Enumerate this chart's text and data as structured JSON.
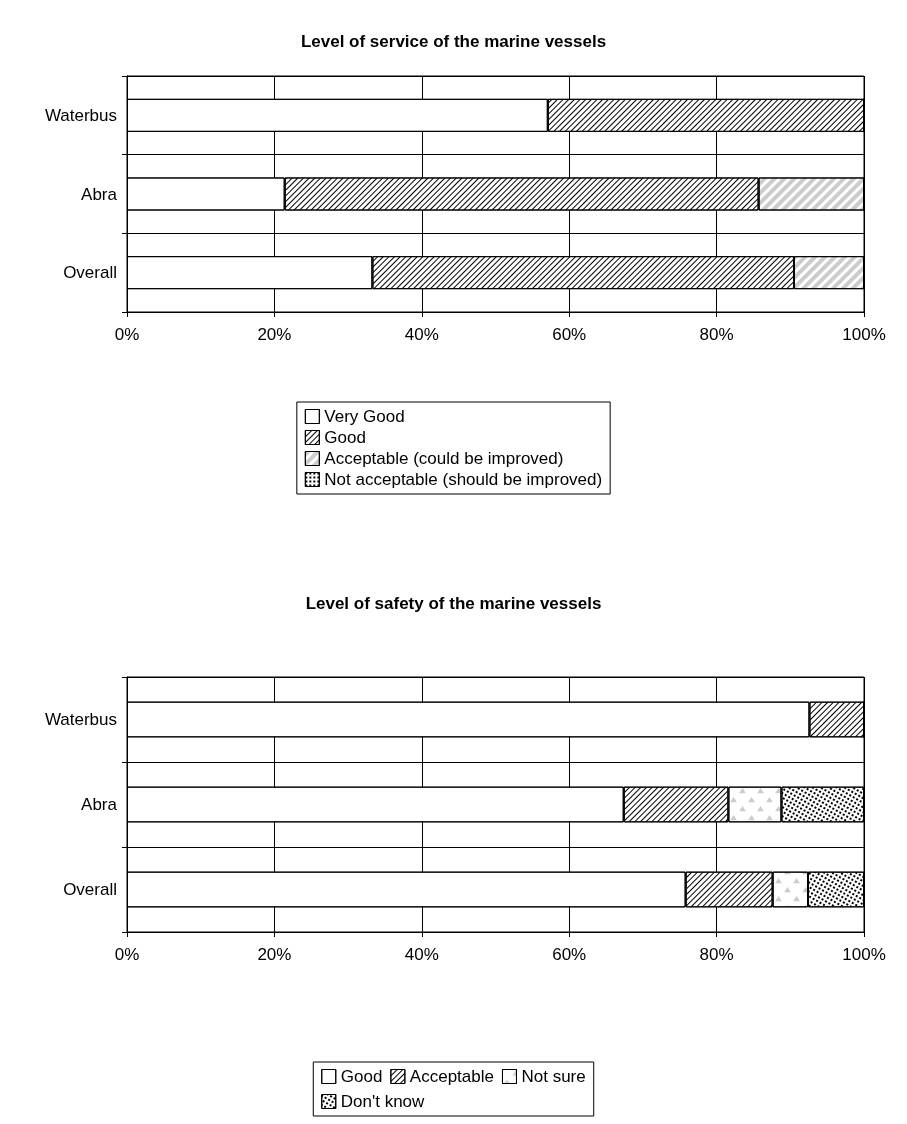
{
  "chart_data": [
    {
      "type": "bar",
      "title": "Level of service of the marine vessels",
      "orientation": "horizontal",
      "stacked": true,
      "grid": true,
      "legend": "bottom",
      "categories": [
        "Waterbus",
        "Abra",
        "Overall"
      ],
      "xlim": [
        0,
        100
      ],
      "xticks": [
        {
          "value": 0,
          "label": "0%"
        },
        {
          "value": 20,
          "label": "20%"
        },
        {
          "value": 40,
          "label": "40%"
        },
        {
          "value": 60,
          "label": "60%"
        },
        {
          "value": 80,
          "label": "80%"
        },
        {
          "value": 100,
          "label": "100%"
        }
      ],
      "series": [
        {
          "name": "Very Good",
          "color": "#ffffff",
          "values": [
            57.1,
            21.4,
            33.3
          ]
        },
        {
          "name": "Good",
          "color": "#ffffff",
          "values": [
            42.9,
            64.3,
            57.2
          ]
        },
        {
          "name": "Acceptable (could be improved)",
          "color": "#ffffff",
          "values": [
            0,
            14.3,
            9.5
          ]
        },
        {
          "name": "Not acceptable (should be improved)",
          "color": "#ffffff",
          "values": [
            0,
            0,
            0
          ]
        }
      ]
    },
    {
      "type": "bar",
      "title": "Level of safety of the marine vessels",
      "orientation": "horizontal",
      "stacked": true,
      "grid": true,
      "legend": "bottom",
      "categories": [
        "Waterbus",
        "Abra",
        "Overall"
      ],
      "xlim": [
        0,
        100
      ],
      "xticks": [
        {
          "value": 0,
          "label": "0%"
        },
        {
          "value": 20,
          "label": "20%"
        },
        {
          "value": 40,
          "label": "40%"
        },
        {
          "value": 60,
          "label": "60%"
        },
        {
          "value": 80,
          "label": "80%"
        },
        {
          "value": 100,
          "label": "100%"
        }
      ],
      "series": [
        {
          "name": "Good",
          "color": "#ffffff",
          "values": [
            92.6,
            67.4,
            75.8
          ]
        },
        {
          "name": "Acceptable",
          "color": "#ffffff",
          "values": [
            7.4,
            14.2,
            11.8
          ]
        },
        {
          "name": "Not sure",
          "color": "#ffffff",
          "values": [
            0,
            7.2,
            4.8
          ]
        },
        {
          "name": "Don't know",
          "color": "#ffffff",
          "values": [
            0,
            11.2,
            7.6
          ]
        }
      ]
    }
  ]
}
